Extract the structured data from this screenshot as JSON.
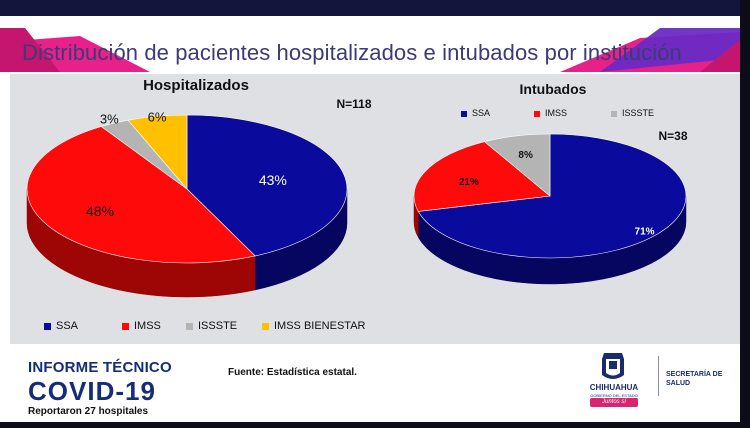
{
  "page": {
    "title": "Distribución de pacientes hospitalizados e intubados por institución"
  },
  "chart_data": [
    {
      "type": "pie",
      "title": "Hospitalizados",
      "n_label": "N=118",
      "categories": [
        "SSA",
        "IMSS",
        "ISSSTE",
        "IMSS BIENESTAR"
      ],
      "values": [
        43,
        48,
        3,
        6
      ],
      "value_labels": [
        "43%",
        "48%",
        "3%",
        "6%"
      ],
      "colors": [
        "#0a0a9c",
        "#ff0a0a",
        "#b4b4b4",
        "#ffc000"
      ],
      "legend_position": "bottom"
    },
    {
      "type": "pie",
      "title": "Intubados",
      "n_label": "N=38",
      "categories": [
        "SSA",
        "IMSS",
        "ISSSTE"
      ],
      "values": [
        71,
        21,
        8
      ],
      "value_labels": [
        "71%",
        "21%",
        "8%"
      ],
      "colors": [
        "#0a0a9c",
        "#ff0a0a",
        "#b4b4b4"
      ],
      "legend_position": "top"
    }
  ],
  "footer": {
    "report_line1": "INFORME TÉCNICO",
    "report_line2": "COVID-19",
    "note": "Reportaron 27 hospitales",
    "source": "Fuente: Estadística estatal."
  },
  "logo": {
    "name": "CHIHUAHUA",
    "government": "GOBIERNO DEL ESTADO",
    "motto": "Juntos sí podemos",
    "agency_line1": "SECRETARÍA DE",
    "agency_line2": "SALUD"
  },
  "colors": {
    "header_bar": "#14153d",
    "band_magenta": "#e8208a",
    "band_purple": "#6a2bc4",
    "title_text": "#3d3a78",
    "brand_blue": "#142d7a"
  }
}
